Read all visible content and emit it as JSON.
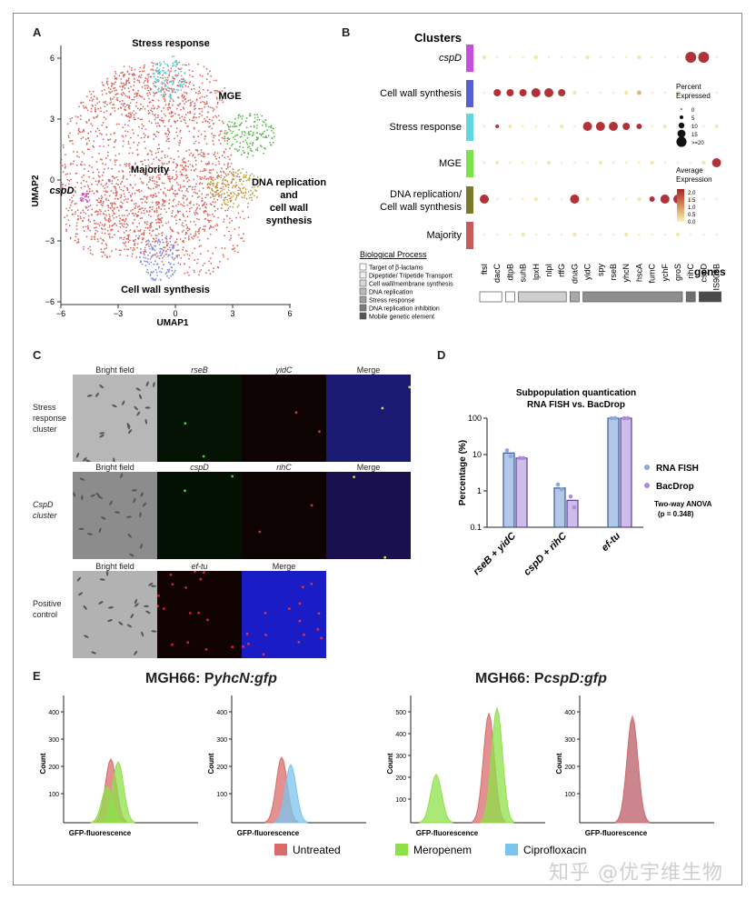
{
  "panels": {
    "A": "A",
    "B": "B",
    "C": "C",
    "D": "D",
    "E": "E"
  },
  "umap": {
    "xlabel": "UMAP1",
    "ylabel": "UMAP2",
    "xticks": [
      "−6",
      "−3",
      "0",
      "3",
      "6"
    ],
    "yticks": [
      "6",
      "3",
      "0",
      "−3",
      "−6"
    ],
    "clusters": {
      "stress": "Stress response",
      "mge": "MGE",
      "majority": "Majority",
      "dna": "DNA replication and cell wall synthesis",
      "cspd": "cspD",
      "cellwall": "Cell wall synthesis"
    },
    "colors": {
      "majority": "#d9675f",
      "stress": "#5fc3cc",
      "mge": "#57b94a",
      "dna": "#b9a234",
      "cspd": "#d44fd6",
      "cellwall": "#7e8fe2"
    }
  },
  "dotplot": {
    "title": "Clusters",
    "rows": [
      "cspD",
      "Cell wall synthesis",
      "Stress response",
      "MGE",
      "DNA replication/ Cell wall synthesis",
      "Majority"
    ],
    "row_colors": [
      "#c34fdb",
      "#5a5ed0",
      "#62d6df",
      "#7ae34b",
      "#7a7a2a",
      "#c65a5c"
    ],
    "genes": [
      "ftsI",
      "dacC",
      "dtpB",
      "suhB",
      "lpxH",
      "nlpI",
      "rffG",
      "dnaG",
      "yidC",
      "spy",
      "rseB",
      "yhcN",
      "hscA",
      "fumC",
      "ychF",
      "groS",
      "rihC",
      "cspD",
      "IS903B"
    ],
    "genes_label": "genes",
    "legend_pct_title": "Percent Expressed",
    "legend_pct": [
      "0",
      "5",
      "10",
      "15",
      ">=20"
    ],
    "legend_avg_title": "Average Expression",
    "legend_avg": [
      "2.0",
      "1.5",
      "1.0",
      "0.5",
      "0.0"
    ],
    "bio_title": "Biological Process",
    "bio": [
      "Target of β-lactams",
      "Dipeptide/ Tripetide Transport",
      "Cell wall/membrane synthesis",
      "DNA replication",
      "Stress response",
      "DNA replication inhibition",
      "Mobile genetic element"
    ]
  },
  "micro": {
    "row1": {
      "label": "Stress response cluster",
      "cols": [
        "Bright field",
        "rseB",
        "yidC",
        "Merge"
      ]
    },
    "row2": {
      "label": "CspD cluster",
      "cols": [
        "Bright field",
        "cspD",
        "rihC",
        "Merge"
      ]
    },
    "row3": {
      "label": "Positive control",
      "cols": [
        "Bright field",
        "ef-tu",
        "Merge"
      ]
    }
  },
  "chart_data": [
    {
      "type": "bar",
      "title": "Subpopulation quanticationRNA FISH vs. BacDrop",
      "title_lines": [
        "Subpopulation quantication",
        "RNA FISH vs. BacDrop"
      ],
      "ylabel": "Percentage (%)",
      "yscale": "log",
      "ylim": [
        0.1,
        100
      ],
      "yticks": [
        "0.1",
        "1",
        "10",
        "100"
      ],
      "categories": [
        "rseB + yidC",
        "cspD + rihC",
        "ef-tu"
      ],
      "series": [
        {
          "name": "RNA FISH",
          "values": [
            11,
            1.2,
            100
          ],
          "color": "#b3c7e6",
          "points": [
            [
              13,
              9
            ],
            [
              1.5,
              1.1
            ],
            [
              100,
              100
            ]
          ]
        },
        {
          "name": "BacDrop",
          "values": [
            8,
            0.55,
            100
          ],
          "color": "#cdbde8",
          "points": [
            [
              8,
              8
            ],
            [
              0.7,
              0.35
            ],
            [
              100,
              100
            ]
          ]
        }
      ],
      "annotation": "Two-way ANOVA (p = 0.348)"
    }
  ],
  "flow": {
    "title1": "MGH66: PyhcN:gfp",
    "title1_pre": "MGH66: P",
    "title1_it": "yhcN:gfp",
    "title2": "MGH66: PcspD:gfp",
    "title2_pre": "MGH66: P",
    "title2_it": "cspD:gfp",
    "xlabel": "GFP-fluorescence",
    "ylabel": "Count",
    "legend": [
      "Untreated",
      "Meropenem",
      "Ciprofloxacin"
    ],
    "legend_colors": [
      "#d96b6b",
      "#8ee04a",
      "#7cc4ec"
    ],
    "plot1": {
      "yticks": [
        "400",
        "300",
        "200",
        "100"
      ]
    },
    "plot2": {
      "yticks": [
        "400",
        "300",
        "200",
        "100"
      ]
    },
    "plot3": {
      "yticks": [
        "500",
        "400",
        "300",
        "200",
        "100"
      ]
    },
    "plot4": {
      "yticks": [
        "400",
        "300",
        "200",
        "100"
      ]
    }
  },
  "watermark": "知乎 @优宇维生物"
}
